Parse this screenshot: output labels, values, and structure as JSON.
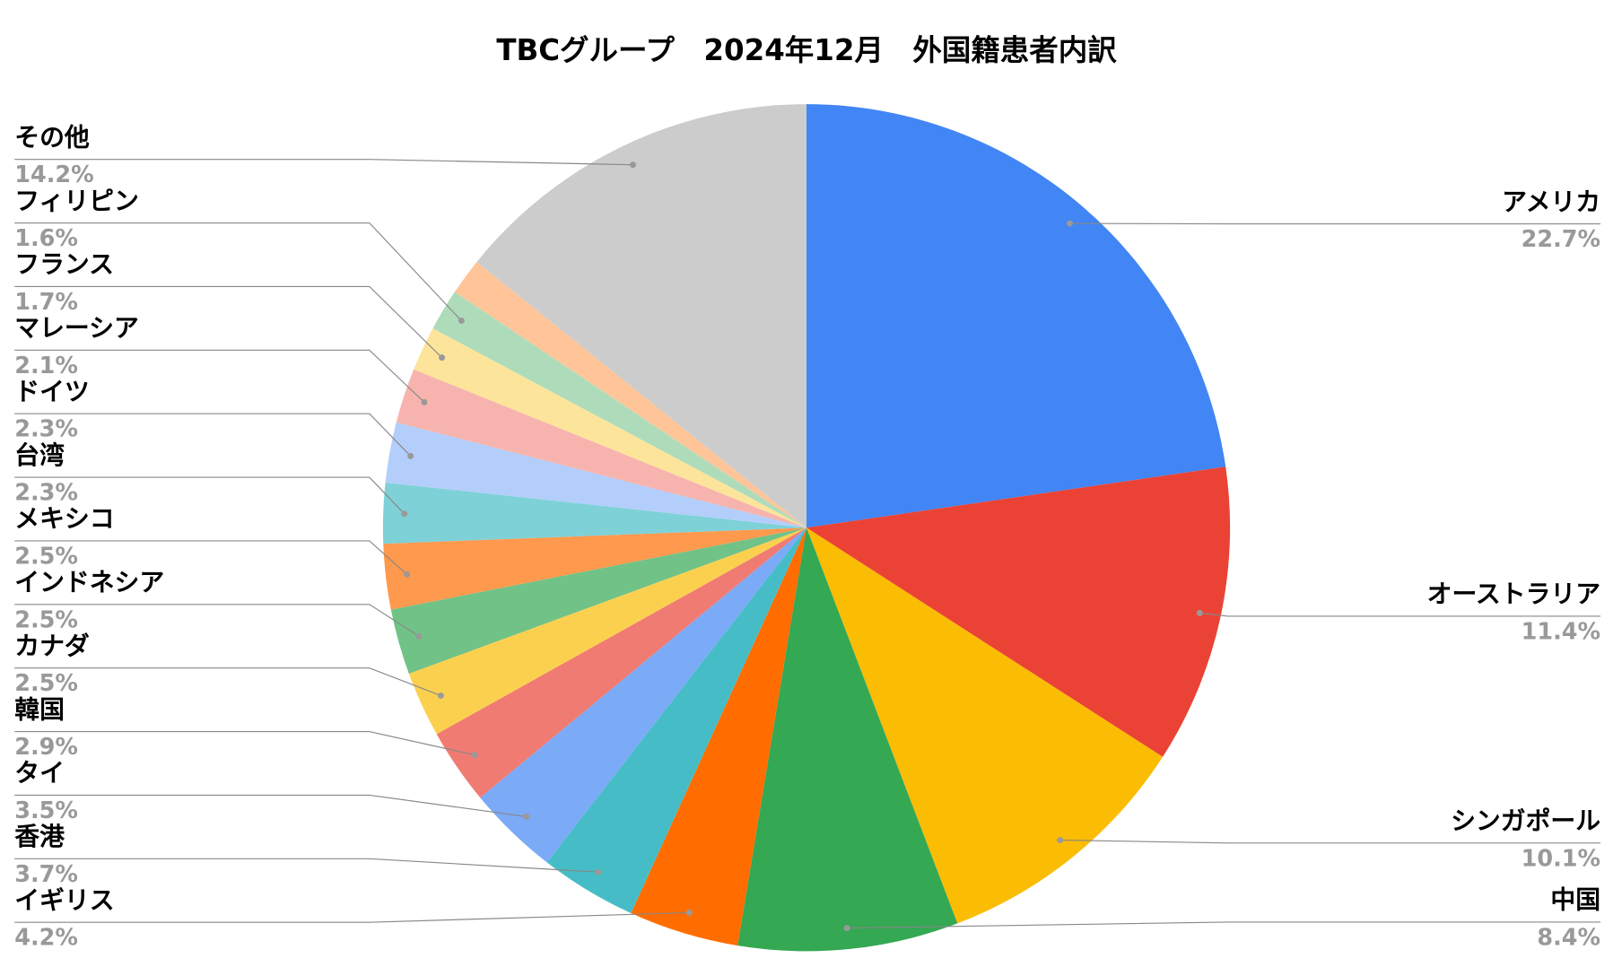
{
  "chart_data": {
    "type": "pie",
    "title": "TBCグループ　2024年12月　外国籍患者内訳",
    "categories": [
      "アメリカ",
      "オーストラリア",
      "シンガポール",
      "中国",
      "イギリス",
      "香港",
      "タイ",
      "韓国",
      "カナダ",
      "インドネシア",
      "メキシコ",
      "台湾",
      "ドイツ",
      "マレーシア",
      "フランス",
      "フィリピン",
      null,
      "その他"
    ],
    "values": [
      22.7,
      11.4,
      10.1,
      8.4,
      4.2,
      3.7,
      3.5,
      2.9,
      2.5,
      2.5,
      2.5,
      2.3,
      2.3,
      2.1,
      1.7,
      1.6,
      1.4,
      14.2
    ],
    "value_labels": [
      "22.7%",
      "11.4%",
      "10.1%",
      "8.4%",
      "4.2%",
      "3.7%",
      "3.5%",
      "2.9%",
      "2.5%",
      "2.5%",
      "2.5%",
      "2.3%",
      "2.3%",
      "2.1%",
      "1.7%",
      "1.6%",
      null,
      "14.2%"
    ],
    "colors": [
      "#4285f4",
      "#ea4335",
      "#fbbc04",
      "#34a853",
      "#ff6d01",
      "#46bdc6",
      "#7baaf7",
      "#f07b72",
      "#fcd04f",
      "#71c287",
      "#ff994d",
      "#7ed1d7",
      "#b3cefb",
      "#f7b4ae",
      "#fde49b",
      "#aedcba",
      "#ffc599",
      "#cccccc"
    ]
  }
}
